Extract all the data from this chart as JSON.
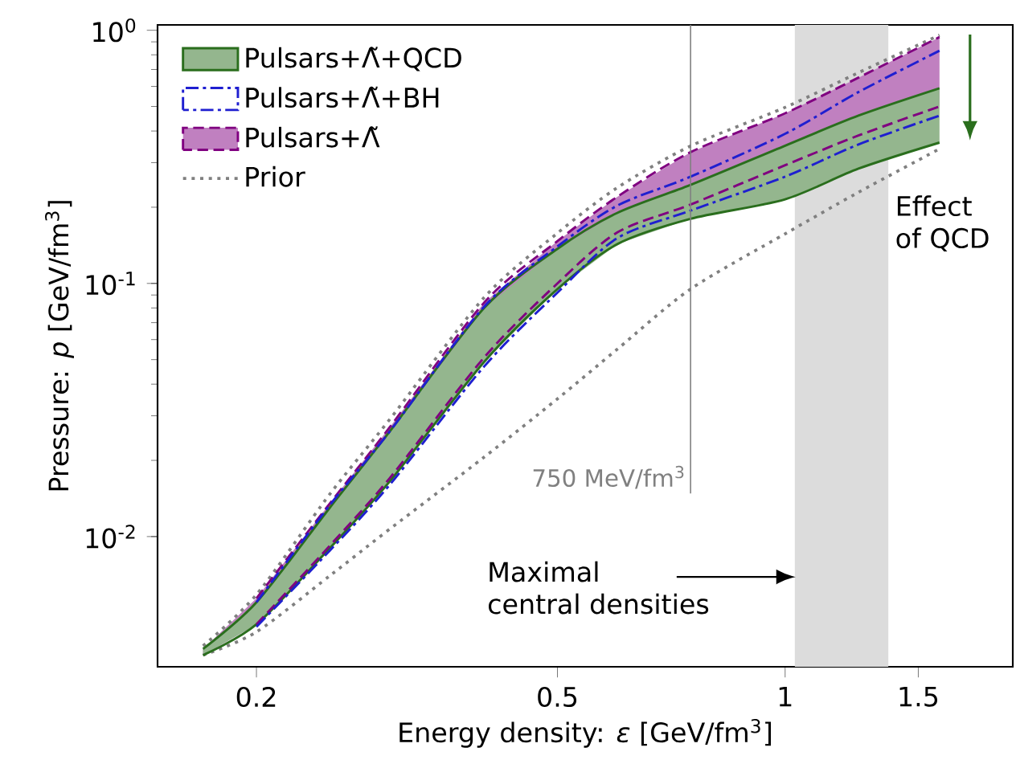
{
  "chart_data": {
    "type": "line",
    "xlabel": "Energy density: *ε* [GeV/fm$^{3}$]",
    "ylabel": "Pressure: *p* [GeV/fm$^{3}$]",
    "log": "xy",
    "x": [
      0.17,
      0.2,
      0.25,
      0.3,
      0.4,
      0.5,
      0.6,
      0.75,
      1.0,
      1.25,
      1.6
    ],
    "series": [
      {
        "name": "Pulsars+Λ̃+QCD",
        "color": "#2a6e1d",
        "line_style": "solid",
        "values": [
          0.0036,
          0.0055,
          0.013,
          0.026,
          0.08,
          0.137,
          0.19,
          0.245,
          0.35,
          0.46,
          0.59
        ],
        "lower": [
          0.0034,
          0.0045,
          0.009,
          0.0165,
          0.049,
          0.095,
          0.143,
          0.18,
          0.215,
          0.284,
          0.36
        ],
        "upper": [
          0.0036,
          0.0055,
          0.013,
          0.026,
          0.08,
          0.137,
          0.19,
          0.245,
          0.35,
          0.46,
          0.59
        ]
      },
      {
        "color": "#2a6e1d",
        "line_style": "solid",
        "values": [
          0.0034,
          0.0045,
          0.009,
          0.0165,
          0.049,
          0.095,
          0.143,
          0.18,
          0.215,
          0.284,
          0.36
        ]
      },
      {
        "name": "Pulsars+Λ̃+BH",
        "color": "#1f1fd0",
        "line_style": "dashdot",
        "values": [
          null,
          0.0055,
          0.0133,
          0.026,
          0.081,
          0.14,
          0.203,
          0.264,
          0.39,
          0.57,
          0.83
        ]
      },
      {
        "color": "#1f1fd0",
        "line_style": "dashdot",
        "values": [
          null,
          0.0044,
          0.0088,
          0.016,
          0.047,
          0.092,
          0.151,
          0.194,
          0.264,
          0.354,
          0.46
        ]
      },
      {
        "name": "Pulsars+Λ̃",
        "color": "#800080",
        "line_style": "dashed",
        "values": [
          null,
          0.0057,
          0.0135,
          0.027,
          0.084,
          0.147,
          0.22,
          0.33,
          0.47,
          0.65,
          0.94
        ],
        "lower": [
          0.0034,
          0.0045,
          0.0092,
          0.017,
          0.051,
          0.1,
          0.159,
          0.205,
          0.293,
          0.384,
          0.5
        ],
        "upper": [
          0.0036,
          0.0057,
          0.0135,
          0.027,
          0.084,
          0.147,
          0.22,
          0.33,
          0.47,
          0.65,
          0.94
        ]
      },
      {
        "color": "#800080",
        "line_style": "dashed",
        "values": [
          null,
          0.0045,
          0.0092,
          0.017,
          0.051,
          0.1,
          0.159,
          0.205,
          0.293,
          0.384,
          0.5
        ]
      },
      {
        "name": "Prior",
        "color": "#808080",
        "line_style": "dotted",
        "values": [
          0.0037,
          0.0059,
          0.0147,
          0.029,
          0.088,
          0.158,
          0.239,
          0.349,
          0.496,
          0.68,
          0.957
        ]
      },
      {
        "color": "#808080",
        "line_style": "dotted",
        "values": [
          0.0034,
          0.0042,
          0.007,
          0.0107,
          0.0206,
          0.035,
          0.055,
          0.095,
          0.157,
          0.229,
          0.34
        ]
      }
    ],
    "xlim": [
      0.148,
      2.0
    ],
    "ylim": [
      0.00306,
      1.05
    ],
    "xticks": [
      0.2,
      0.5,
      1,
      1.5
    ],
    "yticks": [
      {
        "value": 0.01,
        "label": "10$^{-2}$"
      },
      {
        "value": 0.1,
        "label": "10$^{-1}$"
      },
      {
        "value": 1,
        "label": "10$^{0}$"
      }
    ],
    "ref_lines": [
      {
        "axis": "x",
        "value": 0.75,
        "label": "750 MeV/fm$^{3}$",
        "color": "#808080"
      }
    ],
    "bands": [
      {
        "axis": "x",
        "from": 1.03,
        "to": 1.37,
        "color": "#dcdcdc"
      }
    ],
    "annotations": [
      "Effect of QCD",
      "Maximal central densities"
    ],
    "legend": "top left",
    "grid": false
  }
}
